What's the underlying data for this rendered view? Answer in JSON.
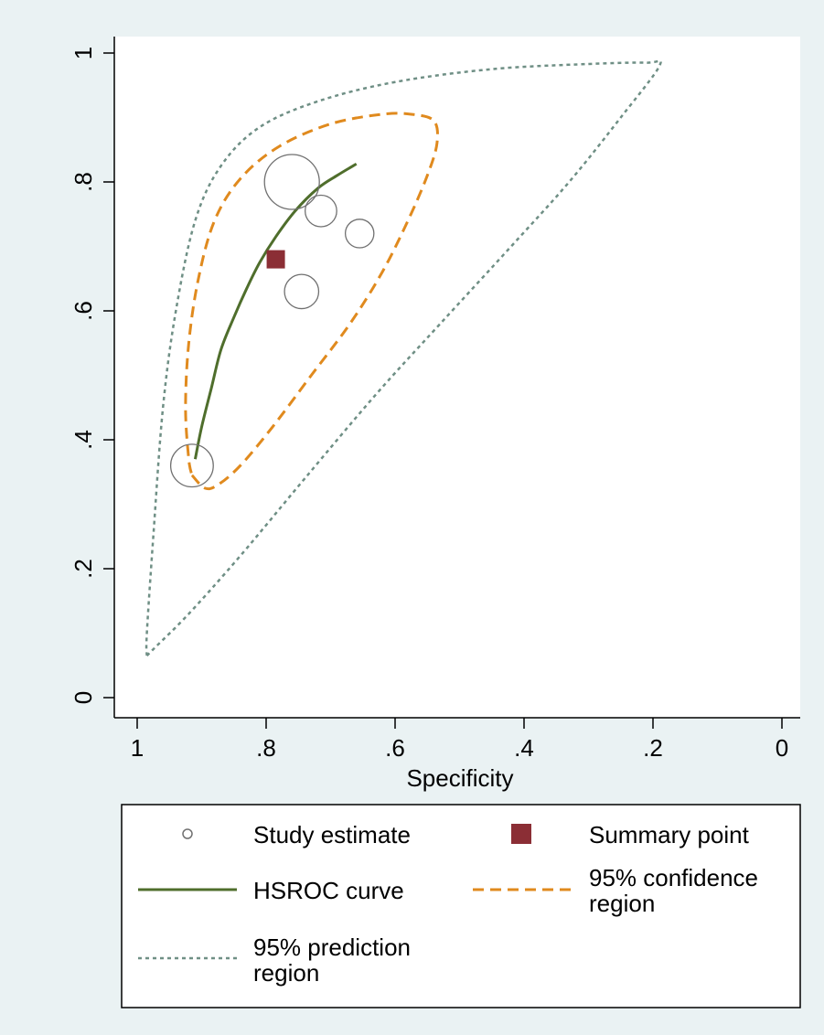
{
  "chart_data": {
    "type": "scatter",
    "title": "",
    "xlabel": "Specificity",
    "ylabel": "",
    "x_reversed": true,
    "xlim": [
      1,
      0
    ],
    "ylim": [
      0,
      1
    ],
    "grid": false,
    "x_ticks": [
      {
        "value": 1,
        "label": "1"
      },
      {
        "value": 0.8,
        "label": ".8"
      },
      {
        "value": 0.6,
        "label": ".6"
      },
      {
        "value": 0.4,
        "label": ".4"
      },
      {
        "value": 0.2,
        "label": ".2"
      },
      {
        "value": 0,
        "label": "0"
      }
    ],
    "y_ticks": [
      {
        "value": 0,
        "label": "0"
      },
      {
        "value": 0.2,
        "label": ".2"
      },
      {
        "value": 0.4,
        "label": ".4"
      },
      {
        "value": 0.6,
        "label": ".6"
      },
      {
        "value": 0.8,
        "label": ".8"
      },
      {
        "value": 1,
        "label": "1"
      }
    ],
    "legend_position": "bottom",
    "colors": {
      "study": "#707070",
      "summary": "#8b2e35",
      "hsroc": "#4f6e2c",
      "confidence": "#e08a1e",
      "prediction": "#6f8f85"
    },
    "study_estimates": [
      {
        "specificity": 0.76,
        "sensitivity": 0.8,
        "weight": 1.0
      },
      {
        "specificity": 0.715,
        "sensitivity": 0.755,
        "weight": 0.22
      },
      {
        "specificity": 0.655,
        "sensitivity": 0.72,
        "weight": 0.16
      },
      {
        "specificity": 0.745,
        "sensitivity": 0.63,
        "weight": 0.28
      },
      {
        "specificity": 0.915,
        "sensitivity": 0.36,
        "weight": 0.52
      }
    ],
    "summary_point": {
      "specificity": 0.785,
      "sensitivity": 0.68
    },
    "hsroc_curve": [
      [
        0.91,
        0.37
      ],
      [
        0.9,
        0.42
      ],
      [
        0.885,
        0.48
      ],
      [
        0.87,
        0.54
      ],
      [
        0.85,
        0.59
      ],
      [
        0.83,
        0.635
      ],
      [
        0.81,
        0.675
      ],
      [
        0.785,
        0.715
      ],
      [
        0.755,
        0.755
      ],
      [
        0.72,
        0.79
      ],
      [
        0.69,
        0.81
      ],
      [
        0.66,
        0.828
      ]
    ],
    "confidence_region": [
      [
        0.915,
        0.345
      ],
      [
        0.895,
        0.325
      ],
      [
        0.875,
        0.33
      ],
      [
        0.84,
        0.36
      ],
      [
        0.79,
        0.42
      ],
      [
        0.73,
        0.5
      ],
      [
        0.67,
        0.58
      ],
      [
        0.62,
        0.66
      ],
      [
        0.58,
        0.74
      ],
      [
        0.55,
        0.81
      ],
      [
        0.535,
        0.86
      ],
      [
        0.54,
        0.895
      ],
      [
        0.575,
        0.905
      ],
      [
        0.62,
        0.905
      ],
      [
        0.7,
        0.89
      ],
      [
        0.78,
        0.855
      ],
      [
        0.84,
        0.805
      ],
      [
        0.88,
        0.74
      ],
      [
        0.905,
        0.65
      ],
      [
        0.92,
        0.55
      ],
      [
        0.925,
        0.45
      ],
      [
        0.92,
        0.37
      ],
      [
        0.915,
        0.345
      ]
    ],
    "prediction_region": [
      [
        0.985,
        0.065
      ],
      [
        0.97,
        0.08
      ],
      [
        0.92,
        0.13
      ],
      [
        0.84,
        0.22
      ],
      [
        0.74,
        0.34
      ],
      [
        0.63,
        0.47
      ],
      [
        0.53,
        0.58
      ],
      [
        0.42,
        0.7
      ],
      [
        0.33,
        0.8
      ],
      [
        0.25,
        0.9
      ],
      [
        0.19,
        0.98
      ],
      [
        0.21,
        0.985
      ],
      [
        0.3,
        0.983
      ],
      [
        0.45,
        0.975
      ],
      [
        0.6,
        0.955
      ],
      [
        0.72,
        0.925
      ],
      [
        0.81,
        0.885
      ],
      [
        0.87,
        0.825
      ],
      [
        0.91,
        0.74
      ],
      [
        0.94,
        0.6
      ],
      [
        0.96,
        0.45
      ],
      [
        0.975,
        0.25
      ],
      [
        0.985,
        0.1
      ],
      [
        0.985,
        0.065
      ]
    ],
    "legend": [
      {
        "key": "study",
        "label": "Study estimate"
      },
      {
        "key": "summary",
        "label": "Summary point"
      },
      {
        "key": "hsroc",
        "label": "HSROC curve"
      },
      {
        "key": "confidence",
        "label_line1": "95% confidence",
        "label_line2": "region"
      },
      {
        "key": "prediction",
        "label_line1": "95% prediction",
        "label_line2": "region"
      }
    ]
  }
}
